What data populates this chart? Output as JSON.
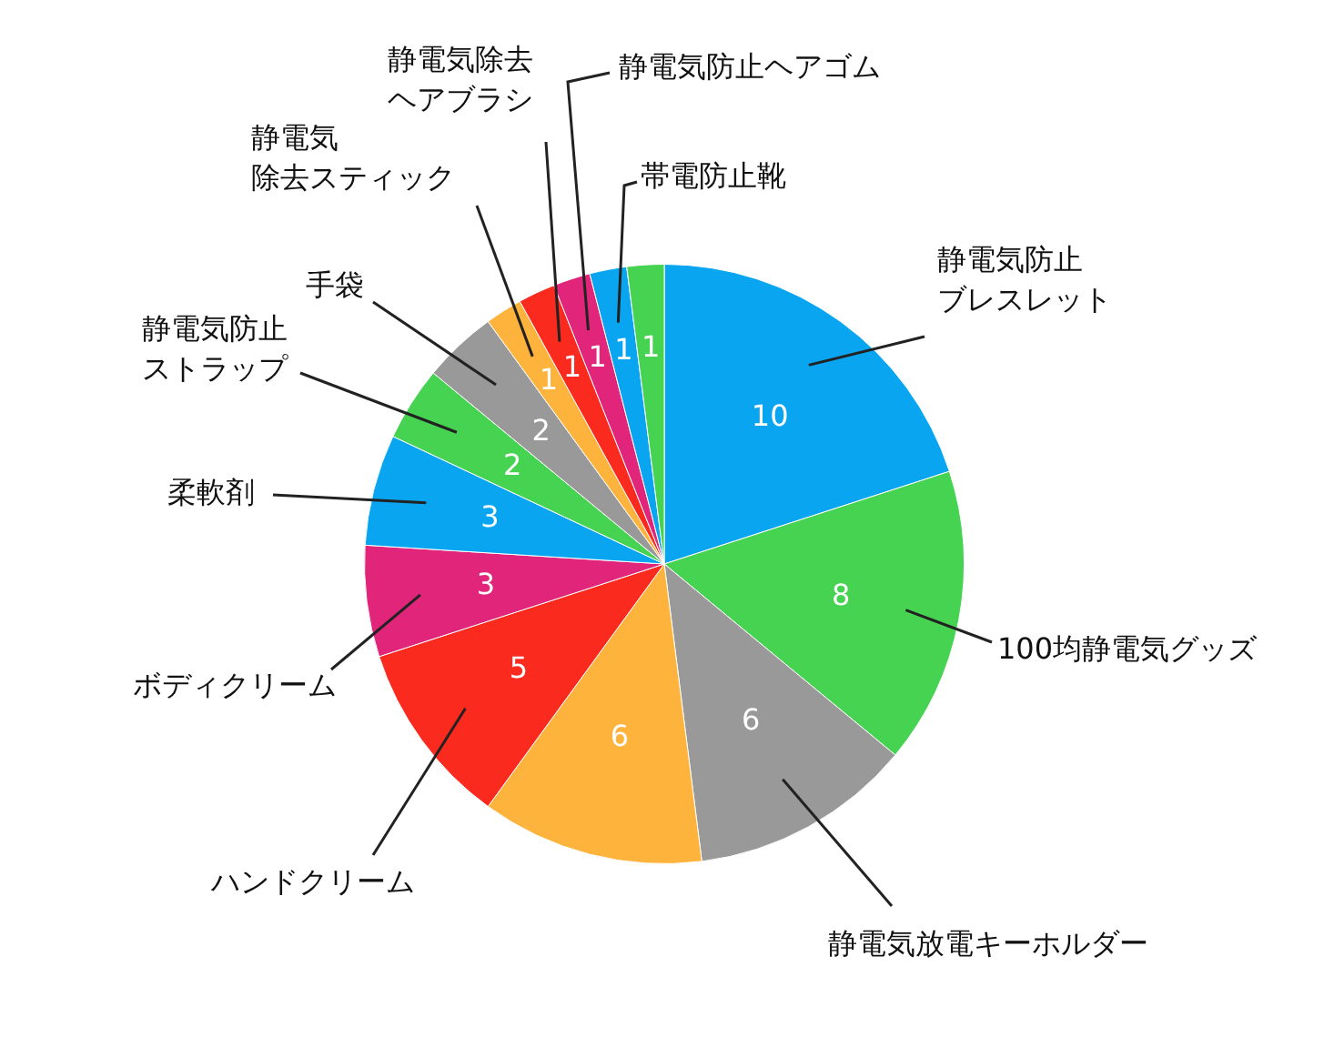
{
  "chart_data": {
    "type": "pie",
    "categories": [
      "静電気防止ブレスレット",
      "100均静電気グッズ",
      "静電気放電キーホルダー",
      null,
      "ハンドクリーム",
      "ボディクリーム",
      "柔軟剤",
      "静電気防止ストラップ",
      "手袋",
      "静電気除去スティック",
      "静電気除去ヘアブラシ",
      "静電気防止ヘアゴム",
      "帯電防止靴",
      null
    ],
    "values": [
      10,
      8,
      6,
      6,
      5,
      3,
      3,
      2,
      2,
      1,
      1,
      1,
      1,
      1
    ],
    "colors": [
      "#0aa5f0",
      "#47d352",
      "#999999",
      "#fdb33c",
      "#fa2a1f",
      "#e0257a",
      "#0aa5f0",
      "#47d352",
      "#999999",
      "#fdb33c",
      "#fa2a1f",
      "#e0257a",
      "#0aa5f0",
      "#47d352"
    ],
    "data_labels": true,
    "legend": false
  }
}
